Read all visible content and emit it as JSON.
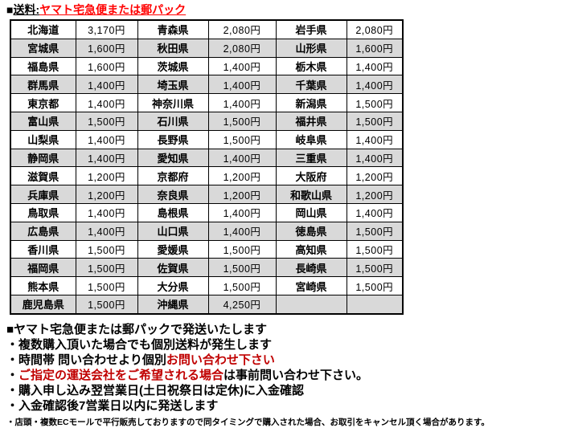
{
  "title": {
    "bullet": "■",
    "label": "送料:",
    "highlight": "ヤマト宅急便または郵パック"
  },
  "colors": {
    "title_red": "#ff0000",
    "note_red": "#c00000",
    "row_alt": "#d9d9d9",
    "border": "#000000"
  },
  "table": {
    "columns": [
      "prefecture",
      "price",
      "prefecture",
      "price",
      "prefecture",
      "price"
    ],
    "rows": [
      [
        "北海道",
        "3,170円",
        "青森県",
        "2,080円",
        "岩手県",
        "2,080円"
      ],
      [
        "宮城県",
        "1,600円",
        "秋田県",
        "2,080円",
        "山形県",
        "1,600円"
      ],
      [
        "福島県",
        "1,600円",
        "茨城県",
        "1,400円",
        "栃木県",
        "1,400円"
      ],
      [
        "群馬県",
        "1,400円",
        "埼玉県",
        "1,400円",
        "千葉県",
        "1,400円"
      ],
      [
        "東京都",
        "1,400円",
        "神奈川県",
        "1,400円",
        "新潟県",
        "1,500円"
      ],
      [
        "富山県",
        "1,500円",
        "石川県",
        "1,500円",
        "福井県",
        "1,500円"
      ],
      [
        "山梨県",
        "1,400円",
        "長野県",
        "1,500円",
        "岐阜県",
        "1,400円"
      ],
      [
        "静岡県",
        "1,400円",
        "愛知県",
        "1,400円",
        "三重県",
        "1,400円"
      ],
      [
        "滋賀県",
        "1,200円",
        "京都府",
        "1,200円",
        "大阪府",
        "1,200円"
      ],
      [
        "兵庫県",
        "1,200円",
        "奈良県",
        "1,200円",
        "和歌山県",
        "1,200円"
      ],
      [
        "鳥取県",
        "1,400円",
        "島根県",
        "1,400円",
        "岡山県",
        "1,400円"
      ],
      [
        "広島県",
        "1,400円",
        "山口県",
        "1,400円",
        "徳島県",
        "1,500円"
      ],
      [
        "香川県",
        "1,500円",
        "愛媛県",
        "1,500円",
        "高知県",
        "1,500円"
      ],
      [
        "福岡県",
        "1,500円",
        "佐賀県",
        "1,500円",
        "長崎県",
        "1,500円"
      ],
      [
        "熊本県",
        "1,500円",
        "大分県",
        "1,500円",
        "宮崎県",
        "1,500円"
      ],
      [
        "鹿児島県",
        "1,500円",
        "沖縄県",
        "4,250円",
        "",
        ""
      ]
    ]
  },
  "notes": {
    "heading": "■ヤマト宅急便または郵パックで発送いたします",
    "bullets": [
      {
        "pre": "・複数購入頂いた場合でも個別送料が発生します",
        "red": "",
        "post": ""
      },
      {
        "pre": "・時間帯 問い合わせより個別",
        "red": "お問い合わせ下さい",
        "post": ""
      },
      {
        "pre": "・",
        "red": "ご指定の運送会社をご希望される場合",
        "post": "は事前問い合わせ下さい。"
      },
      {
        "pre": "・購入申し込み翌営業日(土日祝祭日は定休)に入金確認",
        "red": "",
        "post": ""
      },
      {
        "pre": "・入金確認後7営業日以内に発送します",
        "red": "",
        "post": ""
      }
    ],
    "smallprint": "・店頭・複数ECモールで平行販売しておりますので同タイミングで購入された場合、お取引をキャンセル頂く場合があります。"
  }
}
